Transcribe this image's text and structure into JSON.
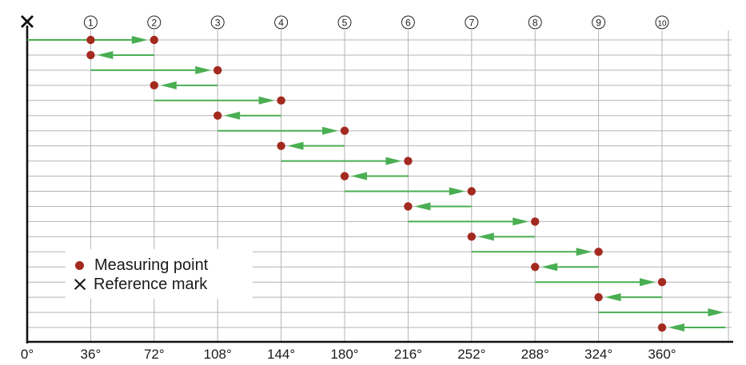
{
  "diagram": {
    "columns": [
      "1",
      "2",
      "3",
      "4",
      "5",
      "6",
      "7",
      "8",
      "9",
      "10"
    ],
    "axis_labels": [
      "0°",
      "36°",
      "72°",
      "108°",
      "144°",
      "180°",
      "216°",
      "252°",
      "288°",
      "324°",
      "360°"
    ],
    "legend": {
      "measuring_point": "Measuring point",
      "reference_mark": "Reference mark"
    },
    "moves": [
      {
        "from": 0,
        "to": 72,
        "point": 36
      },
      {
        "from": 72,
        "to": 36,
        "point": null
      },
      {
        "from": 36,
        "to": 108,
        "point": null
      },
      {
        "from": 108,
        "to": 72,
        "point": null
      },
      {
        "from": 72,
        "to": 144,
        "point": null
      },
      {
        "from": 144,
        "to": 108,
        "point": null
      },
      {
        "from": 108,
        "to": 180,
        "point": null
      },
      {
        "from": 180,
        "to": 144,
        "point": null
      },
      {
        "from": 144,
        "to": 216,
        "point": null
      },
      {
        "from": 216,
        "to": 180,
        "point": null
      },
      {
        "from": 180,
        "to": 252,
        "point": null
      },
      {
        "from": 252,
        "to": 216,
        "point": null
      },
      {
        "from": 216,
        "to": 288,
        "point": null
      },
      {
        "from": 288,
        "to": 252,
        "point": null
      },
      {
        "from": 252,
        "to": 324,
        "point": null
      },
      {
        "from": 324,
        "to": 288,
        "point": null
      },
      {
        "from": 288,
        "to": 360,
        "point": null
      },
      {
        "from": 360,
        "to": 324,
        "point": null
      },
      {
        "from": 324,
        "to": 396,
        "point": null
      },
      {
        "from": 396,
        "to": 360,
        "point": null
      }
    ],
    "colors": {
      "arrow": "#4aae52",
      "point": "#a32a1f",
      "grid": "#b4b4b4",
      "axis": "#111111"
    }
  }
}
